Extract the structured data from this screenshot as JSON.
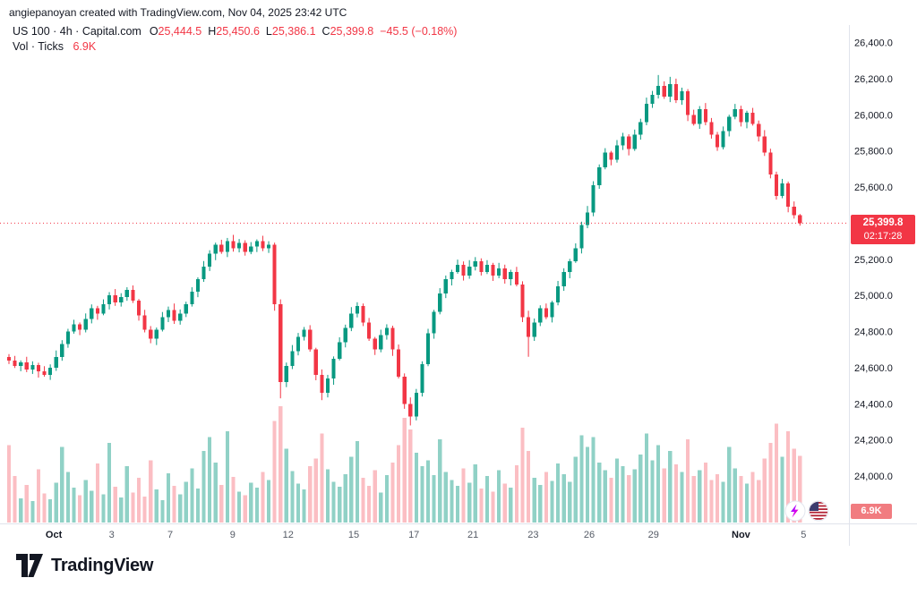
{
  "header": {
    "attribution": "angiepanoyan created with TradingView.com, Nov 04, 2025 23:42 UTC"
  },
  "legend": {
    "symbol_line": {
      "title": "US 100 · 4h · Capital.com",
      "open_label": "O",
      "open": "25,444.5",
      "high_label": "H",
      "high": "25,450.6",
      "low_label": "L",
      "low": "25,386.1",
      "close_label": "C",
      "close": "25,399.8",
      "change": "−45.5 (−0.18%)"
    },
    "volume_line": {
      "label": "Vol · Ticks",
      "value": "6.9K"
    }
  },
  "price_badge": {
    "price": "25,399.8",
    "countdown": "02:17:28"
  },
  "volume_badge": {
    "value": "6.9K"
  },
  "footer": {
    "logo_text": "TradingView"
  },
  "colors": {
    "up": "#089981",
    "down": "#F23645",
    "vol_up": "rgba(8,153,129,0.45)",
    "vol_down": "rgba(242,54,69,0.32)",
    "axis_text": "#131722",
    "minor_tick_text": "#555B66",
    "separator": "#E0E3EB",
    "badge_bg": "#F23645",
    "vol_badge_bg": "#F17C80"
  },
  "chart_data": {
    "type": "candlestick",
    "symbol": "US 100",
    "interval": "4h",
    "source": "Capital.com",
    "volume_unit": "K ticks",
    "ylim": [
      24000,
      26400
    ],
    "last_price": 25399.8,
    "y_ticks": [
      {
        "label": "26,400.0",
        "price": 26400
      },
      {
        "label": "26,200.0",
        "price": 26200
      },
      {
        "label": "26,000.0",
        "price": 26000
      },
      {
        "label": "25,800.0",
        "price": 25800
      },
      {
        "label": "25,600.0",
        "price": 25600
      },
      {
        "label": "25,400.0",
        "price": 25400
      },
      {
        "label": "25,200.0",
        "price": 25200
      },
      {
        "label": "25,000.0",
        "price": 25000
      },
      {
        "label": "24,800.0",
        "price": 24800
      },
      {
        "label": "24,600.0",
        "price": 24600
      },
      {
        "label": "24,400.0",
        "price": 24400
      },
      {
        "label": "24,200.0",
        "price": 24200
      },
      {
        "label": "24,000.0",
        "price": 24000
      }
    ],
    "x_ticks": [
      {
        "label": "Oct",
        "index": 7.6,
        "major": true
      },
      {
        "label": "3",
        "index": 17.4,
        "major": false
      },
      {
        "label": "7",
        "index": 27.3,
        "major": false
      },
      {
        "label": "9",
        "index": 37.9,
        "major": false
      },
      {
        "label": "12",
        "index": 47.3,
        "major": false
      },
      {
        "label": "15",
        "index": 58.4,
        "major": false
      },
      {
        "label": "17",
        "index": 68.6,
        "major": false
      },
      {
        "label": "21",
        "index": 78.6,
        "major": false
      },
      {
        "label": "23",
        "index": 88.8,
        "major": false
      },
      {
        "label": "26",
        "index": 98.3,
        "major": false
      },
      {
        "label": "29",
        "index": 109.2,
        "major": false
      },
      {
        "label": "Nov",
        "index": 124.0,
        "major": true
      },
      {
        "label": "5",
        "index": 134.6,
        "major": false
      }
    ],
    "candles_format": [
      "open",
      "high",
      "low",
      "close",
      "volume_k"
    ],
    "candles": [
      [
        24660,
        24675,
        24620,
        24640,
        8.0
      ],
      [
        24640,
        24665,
        24598,
        24610,
        4.8
      ],
      [
        24610,
        24640,
        24580,
        24630,
        2.5
      ],
      [
        24630,
        24660,
        24575,
        24590,
        3.9
      ],
      [
        24590,
        24635,
        24565,
        24615,
        2.2
      ],
      [
        24615,
        24627,
        24545,
        24580,
        5.5
      ],
      [
        24580,
        24608,
        24550,
        24560,
        3.0
      ],
      [
        24560,
        24618,
        24532,
        24600,
        2.4
      ],
      [
        24600,
        24695,
        24582,
        24660,
        4.1
      ],
      [
        24660,
        24752,
        24638,
        24730,
        7.8
      ],
      [
        24730,
        24815,
        24710,
        24800,
        5.2
      ],
      [
        24800,
        24865,
        24788,
        24840,
        3.6
      ],
      [
        24840,
        24850,
        24780,
        24810,
        2.8
      ],
      [
        24810,
        24900,
        24795,
        24870,
        4.4
      ],
      [
        24870,
        24950,
        24845,
        24930,
        3.3
      ],
      [
        24930,
        24942,
        24865,
        24900,
        6.1
      ],
      [
        24900,
        24978,
        24890,
        24950,
        2.9
      ],
      [
        24950,
        25018,
        24922,
        25000,
        8.2
      ],
      [
        25000,
        25035,
        24942,
        24960,
        3.7
      ],
      [
        24960,
        25012,
        24938,
        24990,
        2.6
      ],
      [
        24990,
        25045,
        24970,
        25030,
        5.8
      ],
      [
        25030,
        25055,
        24958,
        24970,
        3.1
      ],
      [
        24970,
        24980,
        24860,
        24890,
        4.6
      ],
      [
        24890,
        24920,
        24795,
        24810,
        2.7
      ],
      [
        24810,
        24830,
        24735,
        24760,
        6.4
      ],
      [
        24760,
        24822,
        24725,
        24810,
        3.4
      ],
      [
        24810,
        24908,
        24800,
        24880,
        2.3
      ],
      [
        24880,
        24938,
        24852,
        24920,
        5.1
      ],
      [
        24920,
        24955,
        24842,
        24860,
        3.8
      ],
      [
        24860,
        24922,
        24838,
        24900,
        2.9
      ],
      [
        24900,
        24965,
        24880,
        24950,
        4.2
      ],
      [
        24950,
        25045,
        24938,
        25020,
        5.6
      ],
      [
        25020,
        25100,
        24990,
        25090,
        3.5
      ],
      [
        25090,
        25190,
        25075,
        25160,
        7.4
      ],
      [
        25160,
        25250,
        25135,
        25230,
        8.8
      ],
      [
        25230,
        25292,
        25195,
        25280,
        6.2
      ],
      [
        25280,
        25308,
        25230,
        25240,
        3.9
      ],
      [
        25240,
        25318,
        25212,
        25300,
        9.4
      ],
      [
        25300,
        25335,
        25242,
        25260,
        4.7
      ],
      [
        25260,
        25312,
        25238,
        25290,
        3.2
      ],
      [
        25290,
        25305,
        25220,
        25240,
        2.8
      ],
      [
        25240,
        25295,
        25228,
        25270,
        4.1
      ],
      [
        25270,
        25310,
        25240,
        25300,
        3.6
      ],
      [
        25300,
        25330,
        25245,
        25260,
        5.2
      ],
      [
        25260,
        25300,
        25235,
        25280,
        4.4
      ],
      [
        25280,
        25292,
        24915,
        24950,
        10.5
      ],
      [
        24950,
        24978,
        24430,
        24520,
        12
      ],
      [
        24520,
        24628,
        24492,
        24610,
        7.6
      ],
      [
        24610,
        24725,
        24592,
        24690,
        5.3
      ],
      [
        24690,
        24792,
        24668,
        24770,
        4.0
      ],
      [
        24770,
        24825,
        24750,
        24810,
        3.4
      ],
      [
        24810,
        24835,
        24688,
        24700,
        5.8
      ],
      [
        24700,
        24710,
        24530,
        24560,
        6.6
      ],
      [
        24560,
        24590,
        24420,
        24460,
        9.2
      ],
      [
        24460,
        24560,
        24435,
        24540,
        5.5
      ],
      [
        24540,
        24662,
        24505,
        24650,
        4.2
      ],
      [
        24650,
        24768,
        24640,
        24740,
        3.7
      ],
      [
        24740,
        24838,
        24712,
        24820,
        5.0
      ],
      [
        24820,
        24935,
        24802,
        24900,
        6.8
      ],
      [
        24900,
        24962,
        24878,
        24940,
        8.4
      ],
      [
        24940,
        24955,
        24830,
        24850,
        4.6
      ],
      [
        24850,
        24875,
        24748,
        24760,
        3.8
      ],
      [
        24760,
        24770,
        24670,
        24700,
        5.4
      ],
      [
        24700,
        24810,
        24685,
        24780,
        3.1
      ],
      [
        24780,
        24840,
        24755,
        24820,
        4.9
      ],
      [
        24820,
        24832,
        24665,
        24700,
        6.2
      ],
      [
        24700,
        24728,
        24540,
        24550,
        8.0
      ],
      [
        24550,
        24568,
        24372,
        24400,
        10.8
      ],
      [
        24400,
        24435,
        24280,
        24330,
        9.6
      ],
      [
        24330,
        24482,
        24308,
        24460,
        7.2
      ],
      [
        24460,
        24635,
        24440,
        24620,
        5.8
      ],
      [
        24620,
        24815,
        24608,
        24790,
        6.4
      ],
      [
        24790,
        24920,
        24760,
        24910,
        4.9
      ],
      [
        24910,
        25040,
        24895,
        25010,
        8.6
      ],
      [
        25010,
        25110,
        24985,
        25090,
        5.2
      ],
      [
        25090,
        25142,
        25055,
        25130,
        4.4
      ],
      [
        25130,
        25198,
        25120,
        25170,
        3.8
      ],
      [
        25170,
        25188,
        25082,
        25110,
        5.6
      ],
      [
        25110,
        25195,
        25092,
        25160,
        4.1
      ],
      [
        25160,
        25212,
        25138,
        25190,
        6.0
      ],
      [
        25190,
        25205,
        25110,
        25130,
        3.5
      ],
      [
        25130,
        25195,
        25118,
        25170,
        4.8
      ],
      [
        25170,
        25180,
        25080,
        25110,
        3.2
      ],
      [
        25110,
        25180,
        25095,
        25150,
        5.4
      ],
      [
        25150,
        25170,
        25065,
        25090,
        4.0
      ],
      [
        25090,
        25142,
        25055,
        25130,
        3.6
      ],
      [
        25130,
        25158,
        25050,
        25060,
        5.9
      ],
      [
        25060,
        25078,
        24852,
        24880,
        9.8
      ],
      [
        24880,
        24915,
        24660,
        24770,
        7.4
      ],
      [
        24770,
        24872,
        24748,
        24850,
        4.6
      ],
      [
        24850,
        24945,
        24830,
        24930,
        3.9
      ],
      [
        24930,
        24955,
        24868,
        24880,
        5.2
      ],
      [
        24880,
        24970,
        24850,
        24960,
        4.3
      ],
      [
        24960,
        25080,
        24945,
        25050,
        6.1
      ],
      [
        25050,
        25150,
        25025,
        25130,
        5.0
      ],
      [
        25130,
        25202,
        25095,
        25190,
        4.2
      ],
      [
        25190,
        25288,
        25180,
        25260,
        6.8
      ],
      [
        25260,
        25408,
        25232,
        25390,
        9.0
      ],
      [
        25390,
        25495,
        25372,
        25460,
        7.8
      ],
      [
        25460,
        25632,
        25438,
        25610,
        8.8
      ],
      [
        25610,
        25725,
        25590,
        25710,
        6.2
      ],
      [
        25710,
        25815,
        25698,
        25790,
        5.4
      ],
      [
        25790,
        25800,
        25720,
        25750,
        4.6
      ],
      [
        25750,
        25860,
        25735,
        25830,
        6.6
      ],
      [
        25830,
        25900,
        25805,
        25880,
        5.8
      ],
      [
        25880,
        25892,
        25775,
        25810,
        4.9
      ],
      [
        25810,
        25918,
        25800,
        25890,
        5.5
      ],
      [
        25890,
        25978,
        25862,
        25960,
        7.0
      ],
      [
        25960,
        26095,
        25942,
        26060,
        9.2
      ],
      [
        26060,
        26132,
        26038,
        26110,
        6.4
      ],
      [
        26110,
        26220,
        26090,
        26160,
        8.0
      ],
      [
        26160,
        26185,
        26088,
        26100,
        5.6
      ],
      [
        26100,
        26210,
        26070,
        26170,
        7.4
      ],
      [
        26170,
        26200,
        26065,
        26080,
        6.0
      ],
      [
        26080,
        26150,
        26055,
        26130,
        5.2
      ],
      [
        26130,
        26142,
        25965,
        26000,
        8.6
      ],
      [
        26000,
        26028,
        25940,
        25950,
        4.8
      ],
      [
        25950,
        26048,
        25922,
        26030,
        5.4
      ],
      [
        26030,
        26065,
        25942,
        25960,
        6.2
      ],
      [
        25960,
        25982,
        25868,
        25890,
        4.4
      ],
      [
        25890,
        25905,
        25800,
        25820,
        5.0
      ],
      [
        25820,
        25935,
        25808,
        25910,
        4.2
      ],
      [
        25910,
        26000,
        25880,
        25990,
        7.8
      ],
      [
        25990,
        26060,
        25975,
        26030,
        5.6
      ],
      [
        26030,
        26050,
        25935,
        25960,
        4.8
      ],
      [
        25960,
        26022,
        25925,
        26010,
        4.0
      ],
      [
        26010,
        26038,
        25940,
        25950,
        5.2
      ],
      [
        25950,
        25968,
        25852,
        25880,
        4.4
      ],
      [
        25880,
        25915,
        25772,
        25790,
        6.6
      ],
      [
        25790,
        25812,
        25648,
        25670,
        8.2
      ],
      [
        25670,
        25685,
        25530,
        25550,
        10.2
      ],
      [
        25550,
        25645,
        25538,
        25620,
        6.8
      ],
      [
        25620,
        25630,
        25460,
        25490,
        9.4
      ],
      [
        25490,
        25520,
        25425,
        25444.5,
        7.6
      ],
      [
        25444.5,
        25450.6,
        25386.1,
        25399.8,
        6.9
      ]
    ]
  }
}
